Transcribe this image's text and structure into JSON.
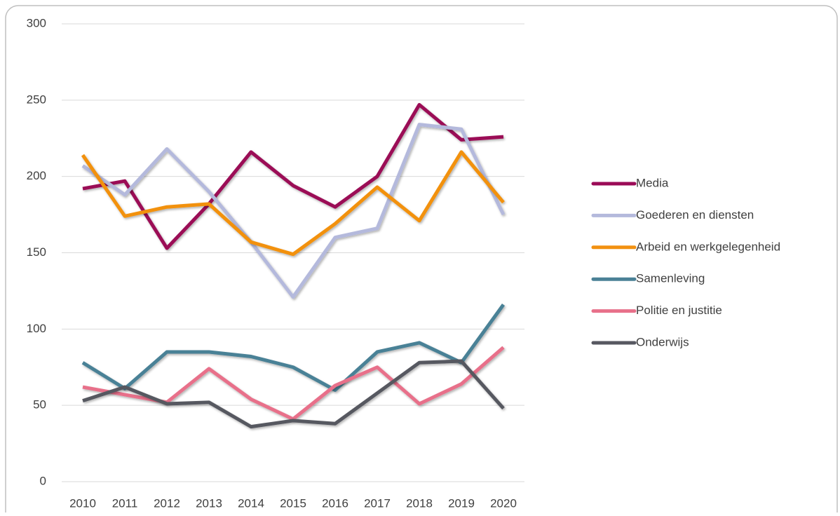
{
  "chart_data": {
    "type": "line",
    "categories": [
      "2010",
      "2011",
      "2012",
      "2013",
      "2014",
      "2015",
      "2016",
      "2017",
      "2018",
      "2019",
      "2020"
    ],
    "series": [
      {
        "name": "Media",
        "color": "#9b0b57",
        "values": [
          192,
          197,
          153,
          182,
          216,
          194,
          180,
          200,
          247,
          224,
          226
        ]
      },
      {
        "name": "Goederen en diensten",
        "color": "#b4b9dc",
        "values": [
          207,
          188,
          218,
          190,
          157,
          121,
          160,
          166,
          234,
          231,
          175
        ]
      },
      {
        "name": "Arbeid en werkgelegenheid",
        "color": "#f29111",
        "values": [
          214,
          174,
          180,
          182,
          157,
          149,
          169,
          193,
          171,
          216,
          183
        ]
      },
      {
        "name": "Samenleving",
        "color": "#4a8196",
        "values": [
          78,
          61,
          85,
          85,
          82,
          75,
          60,
          85,
          91,
          78,
          116
        ]
      },
      {
        "name": "Politie en justitie",
        "color": "#e8708a",
        "values": [
          62,
          57,
          52,
          74,
          54,
          41,
          63,
          75,
          51,
          64,
          88
        ]
      },
      {
        "name": "Onderwijs",
        "color": "#575861",
        "values": [
          53,
          62,
          51,
          52,
          36,
          40,
          38,
          58,
          78,
          79,
          48
        ]
      }
    ],
    "ylim": [
      0,
      300
    ],
    "yticks": [
      0,
      50,
      100,
      150,
      200,
      250,
      300
    ],
    "grid": true,
    "legend": "right"
  }
}
